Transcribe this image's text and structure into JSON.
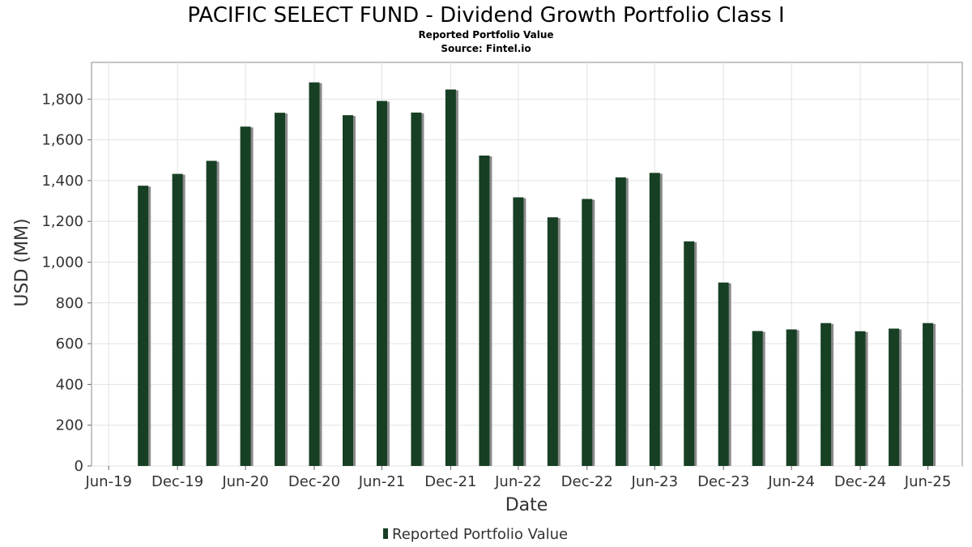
{
  "chart_data": {
    "type": "bar",
    "title": "PACIFIC SELECT FUND - Dividend Growth Portfolio Class I",
    "subtitle": "Reported Portfolio Value",
    "source": "Source: Fintel.io",
    "xlabel": "Date",
    "ylabel": "USD (MM)",
    "ylim": [
      0,
      1980
    ],
    "xlim": [
      "2019-05-15",
      "2025-09-30"
    ],
    "yticks": [
      0,
      200,
      400,
      600,
      800,
      1000,
      1200,
      1400,
      1600,
      1800
    ],
    "ytick_labels": [
      "0",
      "200",
      "400",
      "600",
      "800",
      "1,000",
      "1,200",
      "1,400",
      "1,600",
      "1,800"
    ],
    "xticks": [
      "2019-06-30",
      "2019-12-31",
      "2020-06-30",
      "2020-12-31",
      "2021-06-30",
      "2021-12-31",
      "2022-06-30",
      "2022-12-31",
      "2023-06-30",
      "2023-12-31",
      "2024-06-30",
      "2024-12-31",
      "2025-06-30"
    ],
    "xtick_labels": [
      "Jun-19",
      "Dec-19",
      "Jun-20",
      "Dec-20",
      "Jun-21",
      "Dec-21",
      "Jun-22",
      "Dec-22",
      "Jun-23",
      "Dec-23",
      "Jun-24",
      "Dec-24",
      "Jun-25"
    ],
    "grid": true,
    "legend_position": "bottom-center",
    "bar_color": "#173f24",
    "bar_shadow_color": "#8a8a8a",
    "series": [
      {
        "name": "Reported Portfolio Value",
        "x": [
          "2019-09-30",
          "2019-12-31",
          "2020-03-31",
          "2020-06-30",
          "2020-09-30",
          "2020-12-31",
          "2021-03-31",
          "2021-06-30",
          "2021-09-30",
          "2021-12-31",
          "2022-03-31",
          "2022-06-30",
          "2022-09-30",
          "2022-12-31",
          "2023-03-31",
          "2023-06-30",
          "2023-09-30",
          "2023-12-31",
          "2024-03-31",
          "2024-06-30",
          "2024-09-30",
          "2024-12-31",
          "2025-03-31",
          "2025-06-30"
        ],
        "values": [
          1375,
          1433,
          1497,
          1665,
          1733,
          1882,
          1721,
          1791,
          1734,
          1847,
          1523,
          1318,
          1220,
          1310,
          1416,
          1438,
          1102,
          900,
          662,
          670,
          701,
          661,
          674,
          701
        ]
      }
    ]
  }
}
